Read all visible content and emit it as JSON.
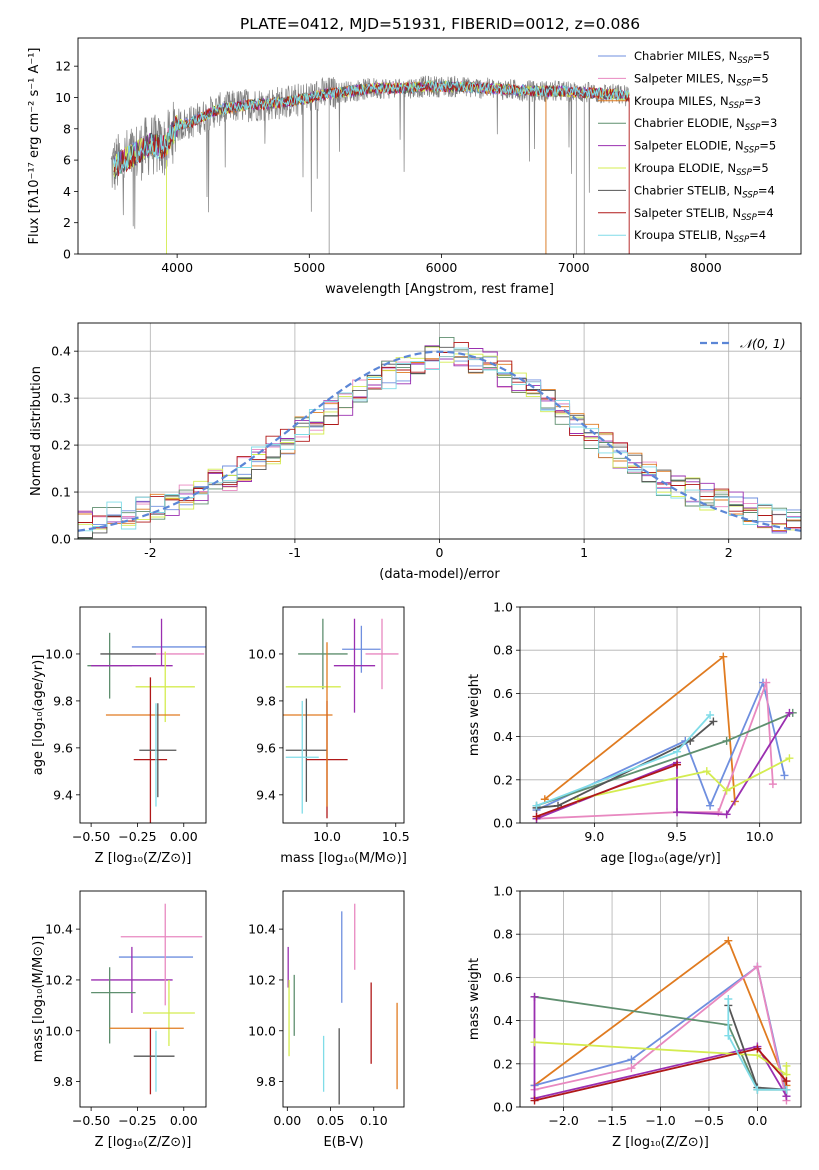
{
  "title": "PLATE=0412, MJD=51931, FIBERID=0012, z=0.086",
  "colors": {
    "chabrier_miles": "#6f8fdf",
    "salpeter_miles": "#e888c0",
    "kroupa_miles": "#e07b20",
    "chabrier_elodie": "#5f8f6f",
    "salpeter_elodie": "#9a2fb0",
    "kroupa_elodie": "#d4ec50",
    "chabrier_stelib": "#555555",
    "salpeter_stelib": "#b01818",
    "kroupa_stelib": "#80dce8",
    "spectrum": "#808080",
    "normal_curve": "#5b86d6",
    "grid": "#b0b0b0"
  },
  "chart_data": [
    {
      "type": "line",
      "xlabel": "wavelength [Angstrom, rest frame]",
      "ylabel": "Flux [fλ10⁻¹⁷ erg cm⁻² s⁻¹ A⁻¹]",
      "xlim": [
        3250,
        8720
      ],
      "ylim": [
        0,
        13.8
      ],
      "xticks": [
        4000,
        5000,
        6000,
        7000,
        8000
      ],
      "yticks": [
        0,
        2,
        4,
        6,
        8,
        10,
        12
      ],
      "grid": false,
      "legend_position": "right",
      "spectrum_profile": {
        "x": [
          3500,
          3600,
          3700,
          3800,
          3900,
          4000,
          4100,
          4300,
          4500,
          4700,
          4900,
          5100,
          5300,
          5500,
          5700,
          5900,
          6100,
          6300,
          6500,
          6700,
          6900,
          7100,
          7300,
          7420
        ],
        "y": [
          5.5,
          6.0,
          6.5,
          7.0,
          6.8,
          8.2,
          8.4,
          9.2,
          9.5,
          9.6,
          9.8,
          10.2,
          10.4,
          10.6,
          10.6,
          10.7,
          10.7,
          10.6,
          10.5,
          10.4,
          10.4,
          10.3,
          10.2,
          10.1
        ]
      },
      "series": [
        {
          "name": "Chabrier MILES, N",
          "sub": "SSP",
          "suffix": "=5",
          "color_key": "chabrier_miles"
        },
        {
          "name": "Salpeter MILES, N",
          "sub": "SSP",
          "suffix": "=5",
          "color_key": "salpeter_miles"
        },
        {
          "name": "Kroupa MILES, N",
          "sub": "SSP",
          "suffix": "=3",
          "color_key": "kroupa_miles"
        },
        {
          "name": "Chabrier ELODIE, N",
          "sub": "SSP",
          "suffix": "=3",
          "color_key": "chabrier_elodie"
        },
        {
          "name": "Salpeter ELODIE, N",
          "sub": "SSP",
          "suffix": "=5",
          "color_key": "salpeter_elodie"
        },
        {
          "name": "Kroupa ELODIE, N",
          "sub": "SSP",
          "suffix": "=5",
          "color_key": "kroupa_elodie"
        },
        {
          "name": "Chabrier STELIB, N",
          "sub": "SSP",
          "suffix": "=4",
          "color_key": "chabrier_stelib"
        },
        {
          "name": "Salpeter STELIB, N",
          "sub": "SSP",
          "suffix": "=4",
          "color_key": "salpeter_stelib"
        },
        {
          "name": "Kroupa STELIB, N",
          "sub": "SSP",
          "suffix": "=4",
          "color_key": "kroupa_stelib"
        }
      ]
    },
    {
      "type": "line",
      "xlabel": "(data-model)/error",
      "ylabel": "Normed distribution",
      "xlim": [
        -2.5,
        2.5
      ],
      "ylim": [
        0,
        0.46
      ],
      "xticks": [
        -2,
        -1,
        0,
        1,
        2
      ],
      "yticks": [
        0.0,
        0.1,
        0.2,
        0.3,
        0.4
      ],
      "grid": true,
      "legend_position": "upper right",
      "legend": "𝒩(0, 1)",
      "histogram_bins": 50,
      "histogram_mean_profile": [
        0.03,
        0.04,
        0.05,
        0.05,
        0.06,
        0.07,
        0.08,
        0.09,
        0.1,
        0.12,
        0.13,
        0.15,
        0.17,
        0.19,
        0.21,
        0.23,
        0.25,
        0.27,
        0.29,
        0.31,
        0.33,
        0.35,
        0.36,
        0.38,
        0.39,
        0.4,
        0.39,
        0.38,
        0.37,
        0.35,
        0.33,
        0.31,
        0.29,
        0.27,
        0.24,
        0.22,
        0.2,
        0.18,
        0.16,
        0.14,
        0.12,
        0.11,
        0.1,
        0.09,
        0.08,
        0.07,
        0.06,
        0.05,
        0.04,
        0.04
      ]
    },
    {
      "type": "scatter",
      "xlabel": "Z [log₁₀(Z/Z⊙)]",
      "ylabel": "age  [log₁₀(age/yr)]",
      "xlim": [
        -0.56,
        0.12
      ],
      "ylim": [
        9.28,
        10.2
      ],
      "xticks": [
        -0.5,
        -0.25,
        0.0
      ],
      "xtick_labels": [
        "−0.50",
        "−0.25",
        "0.00"
      ],
      "yticks": [
        9.4,
        9.6,
        9.8,
        10.0
      ],
      "grid": false,
      "marker": "errorbar"
    },
    {
      "type": "scatter",
      "xlabel": "mass [log₁₀(M/M⊙)]",
      "ylabel": "",
      "xlim": [
        9.68,
        10.56
      ],
      "ylim": [
        9.28,
        10.2
      ],
      "xticks": [
        10.0,
        10.5
      ],
      "yticks": [
        9.4,
        9.6,
        9.8,
        10.0
      ],
      "grid": false,
      "marker": "errorbar"
    },
    {
      "type": "line",
      "xlabel": "age  [log₁₀(age/yr)]",
      "ylabel": "mass weight",
      "xlim": [
        8.55,
        10.25
      ],
      "ylim": [
        0,
        1.0
      ],
      "xticks": [
        9.0,
        9.5,
        10.0
      ],
      "yticks": [
        0.0,
        0.2,
        0.4,
        0.6,
        0.8,
        1.0
      ],
      "grid": true,
      "series": [
        {
          "color_key": "kroupa_miles",
          "x": [
            8.7,
            9.78,
            9.85
          ],
          "y": [
            0.11,
            0.77,
            0.1
          ]
        },
        {
          "color_key": "chabrier_miles",
          "x": [
            8.65,
            9.55,
            9.7,
            10.02,
            10.15
          ],
          "y": [
            0.06,
            0.38,
            0.08,
            0.65,
            0.22
          ]
        },
        {
          "color_key": "salpeter_miles",
          "x": [
            8.65,
            9.5,
            9.75,
            10.04,
            10.08
          ],
          "y": [
            0.02,
            0.05,
            0.05,
            0.65,
            0.18
          ]
        },
        {
          "color_key": "chabrier_elodie",
          "x": [
            8.65,
            9.8,
            10.2
          ],
          "y": [
            0.08,
            0.38,
            0.51
          ]
        },
        {
          "color_key": "salpeter_elodie",
          "x": [
            8.65,
            9.5,
            9.5,
            9.8,
            10.18
          ],
          "y": [
            0.02,
            0.28,
            0.05,
            0.04,
            0.51
          ]
        },
        {
          "color_key": "kroupa_elodie",
          "x": [
            8.9,
            9.68,
            9.8,
            10.18
          ],
          "y": [
            0.11,
            0.24,
            0.15,
            0.3
          ]
        },
        {
          "color_key": "chabrier_stelib",
          "x": [
            8.65,
            8.78,
            9.58,
            9.72
          ],
          "y": [
            0.07,
            0.08,
            0.38,
            0.47
          ]
        },
        {
          "color_key": "salpeter_stelib",
          "x": [
            8.65,
            9.5
          ],
          "y": [
            0.03,
            0.27
          ]
        },
        {
          "color_key": "kroupa_stelib",
          "x": [
            8.65,
            9.5,
            9.7
          ],
          "y": [
            0.08,
            0.33,
            0.5
          ]
        }
      ]
    },
    {
      "type": "scatter",
      "xlabel": "Z [log₁₀(Z/Z⊙)]",
      "ylabel": "mass [log₁₀(M/M⊙)]",
      "xlim": [
        -0.56,
        0.12
      ],
      "ylim": [
        9.7,
        10.55
      ],
      "xticks": [
        -0.5,
        -0.25,
        0.0
      ],
      "xtick_labels": [
        "−0.50",
        "−0.25",
        "0.00"
      ],
      "yticks": [
        9.8,
        10.0,
        10.2,
        10.4
      ],
      "grid": false,
      "marker": "errorbar"
    },
    {
      "type": "scatter",
      "xlabel": "E(B-V)",
      "ylabel": "",
      "xlim": [
        -0.005,
        0.135
      ],
      "ylim": [
        9.7,
        10.55
      ],
      "xticks": [
        0.0,
        0.05,
        0.1
      ],
      "xtick_labels": [
        "0.00",
        "0.05",
        "0.10"
      ],
      "yticks": [
        9.8,
        10.0,
        10.2,
        10.4
      ],
      "grid": false,
      "marker": "errorbar"
    },
    {
      "type": "line",
      "xlabel": "Z [log₁₀(Z/Z⊙)]",
      "ylabel": "mass weight",
      "xlim": [
        -2.45,
        0.45
      ],
      "ylim": [
        0,
        1.0
      ],
      "xticks": [
        -2.0,
        -1.5,
        -1.0,
        -0.5,
        0.0
      ],
      "xtick_labels": [
        "−2.0",
        "−1.5",
        "−1.0",
        "−0.5",
        "0.0"
      ],
      "yticks": [
        0.0,
        0.2,
        0.4,
        0.6,
        0.8,
        1.0
      ],
      "grid": true,
      "series": [
        {
          "color_key": "kroupa_miles",
          "x": [
            -2.3,
            -0.3,
            0.3
          ],
          "y": [
            0.1,
            0.77,
            0.1
          ]
        },
        {
          "color_key": "chabrier_miles",
          "x": [
            -2.3,
            -1.3,
            0.0,
            0.3
          ],
          "y": [
            0.1,
            0.22,
            0.65,
            0.05
          ]
        },
        {
          "color_key": "salpeter_miles",
          "x": [
            -2.3,
            -1.3,
            0.0,
            0.3
          ],
          "y": [
            0.08,
            0.18,
            0.65,
            0.03
          ]
        },
        {
          "color_key": "chabrier_elodie",
          "x": [
            -2.3,
            -0.3,
            0.0,
            0.3
          ],
          "y": [
            0.51,
            0.38,
            0.08,
            0.08
          ]
        },
        {
          "color_key": "salpeter_elodie",
          "x": [
            -2.3,
            -2.3,
            0.0,
            0.3
          ],
          "y": [
            0.51,
            0.04,
            0.28,
            0.05
          ]
        },
        {
          "color_key": "kroupa_elodie",
          "x": [
            -2.3,
            0.0,
            0.3,
            0.3
          ],
          "y": [
            0.3,
            0.24,
            0.15,
            0.19
          ]
        },
        {
          "color_key": "chabrier_stelib",
          "x": [
            -0.3,
            0.0,
            0.3
          ],
          "y": [
            0.47,
            0.09,
            0.08
          ]
        },
        {
          "color_key": "salpeter_stelib",
          "x": [
            -2.3,
            0.0,
            0.3
          ],
          "y": [
            0.03,
            0.27,
            0.12
          ]
        },
        {
          "color_key": "kroupa_stelib",
          "x": [
            -0.3,
            -0.3,
            0.0,
            0.3
          ],
          "y": [
            0.5,
            0.33,
            0.08,
            0.08
          ]
        }
      ]
    }
  ],
  "errorbars": {
    "age_vs_Z": [
      {
        "c": "chabrier_miles",
        "x": -0.08,
        "xe": 0.2,
        "y": 10.03,
        "ye": 0.0
      },
      {
        "c": "salpeter_miles",
        "x": -0.02,
        "xe": 0.13,
        "y": 10.0,
        "ye": 0.0
      },
      {
        "c": "chabrier_elodie",
        "x": -0.4,
        "xe": 0.12,
        "y": 9.95,
        "ye": 0.14
      },
      {
        "c": "salpeter_elodie",
        "x": -0.28,
        "xe": 0.22,
        "y": 9.95,
        "ye": 0.0
      },
      {
        "c": "salpeter_elodie",
        "x": -0.12,
        "xe": 0.0,
        "y": 10.05,
        "ye": 0.1
      },
      {
        "c": "kroupa_elodie",
        "x": -0.1,
        "xe": 0.16,
        "y": 9.86,
        "ye": 0.15
      },
      {
        "c": "chabrier_stelib",
        "x": -0.3,
        "xe": 0.15,
        "y": 10.0,
        "ye": 0.0
      },
      {
        "c": "kroupa_miles",
        "x": -0.22,
        "xe": 0.2,
        "y": 9.74,
        "ye": 0.0
      },
      {
        "c": "salpeter_stelib",
        "x": -0.18,
        "xe": 0.09,
        "y": 9.55,
        "ye": 0.35
      },
      {
        "c": "chabrier_stelib",
        "x": -0.14,
        "xe": 0.1,
        "y": 9.59,
        "ye": 0.2
      },
      {
        "c": "kroupa_stelib",
        "x": -0.15,
        "xe": 0.0,
        "y": 9.57,
        "ye": 0.22
      }
    ],
    "age_vs_mass": [
      {
        "c": "chabrier_miles",
        "x": 10.25,
        "xe": 0.14,
        "y": 10.02,
        "ye": 0.1
      },
      {
        "c": "salpeter_miles",
        "x": 10.4,
        "xe": 0.12,
        "y": 10.0,
        "ye": 0.15
      },
      {
        "c": "chabrier_elodie",
        "x": 9.97,
        "xe": 0.18,
        "y": 10.0,
        "ye": 0.15
      },
      {
        "c": "salpeter_elodie",
        "x": 10.2,
        "xe": 0.15,
        "y": 9.95,
        "ye": 0.2
      },
      {
        "c": "kroupa_elodie",
        "x": 9.9,
        "xe": 0.2,
        "y": 9.86,
        "ye": 0.0
      },
      {
        "c": "kroupa_miles",
        "x": 9.82,
        "xe": 0.22,
        "y": 9.74,
        "ye": 0.0
      },
      {
        "c": "chabrier_stelib",
        "x": 9.85,
        "xe": 0.15,
        "y": 9.59,
        "ye": 0.22
      },
      {
        "c": "salpeter_stelib",
        "x": 10.0,
        "xe": 0.15,
        "y": 9.55,
        "ye": 0.25
      },
      {
        "c": "kroupa_stelib",
        "x": 9.82,
        "xe": 0.12,
        "y": 9.56,
        "ye": 0.24
      },
      {
        "c": "kroupa_miles",
        "x": 10.0,
        "xe": 0.0,
        "y": 9.7,
        "ye": 0.35
      }
    ],
    "mass_vs_Z": [
      {
        "c": "salpeter_miles",
        "x": -0.12,
        "xe": 0.22,
        "y": 10.37,
        "ye": 0.0
      },
      {
        "c": "chabrier_miles",
        "x": -0.15,
        "xe": 0.2,
        "y": 10.29,
        "ye": 0.0
      },
      {
        "c": "salpeter_elodie",
        "x": -0.28,
        "xe": 0.22,
        "y": 10.2,
        "ye": 0.13
      },
      {
        "c": "chabrier_elodie",
        "x": -0.38,
        "xe": 0.12,
        "y": 10.15,
        "ye": 0.0
      },
      {
        "c": "chabrier_elodie",
        "x": -0.4,
        "xe": 0.0,
        "y": 10.1,
        "ye": 0.15
      },
      {
        "c": "kroupa_elodie",
        "x": -0.08,
        "xe": 0.14,
        "y": 10.07,
        "ye": 0.13
      },
      {
        "c": "salpeter_miles",
        "x": -0.1,
        "xe": 0.0,
        "y": 10.3,
        "ye": 0.2
      },
      {
        "c": "kroupa_miles",
        "x": -0.2,
        "xe": 0.2,
        "y": 10.01,
        "ye": 0.0
      },
      {
        "c": "salpeter_stelib",
        "x": -0.18,
        "xe": 0.0,
        "y": 9.88,
        "ye": 0.13
      },
      {
        "c": "chabrier_stelib",
        "x": -0.16,
        "xe": 0.11,
        "y": 9.9,
        "ye": 0.0
      },
      {
        "c": "kroupa_stelib",
        "x": -0.15,
        "xe": 0.0,
        "y": 9.88,
        "ye": 0.12
      }
    ],
    "mass_vs_ebv": [
      {
        "c": "salpeter_elodie",
        "x": 0.001,
        "xe": 0.0,
        "y": 10.25,
        "ye": 0.08
      },
      {
        "c": "kroupa_elodie",
        "x": 0.002,
        "xe": 0.0,
        "y": 10.05,
        "ye": 0.15
      },
      {
        "c": "chabrier_elodie",
        "x": 0.008,
        "xe": 0.0,
        "y": 10.1,
        "ye": 0.12
      },
      {
        "c": "kroupa_stelib",
        "x": 0.042,
        "xe": 0.0,
        "y": 9.87,
        "ye": 0.11
      },
      {
        "c": "chabrier_stelib",
        "x": 0.06,
        "xe": 0.0,
        "y": 9.86,
        "ye": 0.15
      },
      {
        "c": "chabrier_miles",
        "x": 0.063,
        "xe": 0.0,
        "y": 10.29,
        "ye": 0.18
      },
      {
        "c": "salpeter_miles",
        "x": 0.078,
        "xe": 0.0,
        "y": 10.37,
        "ye": 0.13
      },
      {
        "c": "salpeter_stelib",
        "x": 0.097,
        "xe": 0.0,
        "y": 10.03,
        "ye": 0.16
      },
      {
        "c": "kroupa_miles",
        "x": 0.127,
        "xe": 0.0,
        "y": 9.94,
        "ye": 0.17
      }
    ]
  }
}
